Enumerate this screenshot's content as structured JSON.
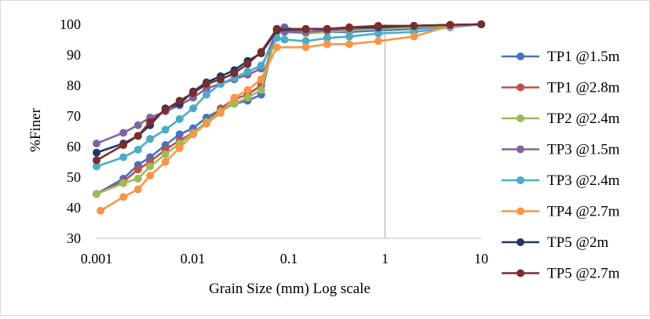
{
  "chart_data": {
    "type": "line",
    "x_scale": "log",
    "xlabel": "Grain Size (mm) Log scale",
    "ylabel": "%Finer",
    "xlim": [
      0.001,
      10
    ],
    "ylim": [
      30,
      100
    ],
    "x_ticks": [
      "0.001",
      "0.01",
      "0.1",
      "1",
      "10"
    ],
    "y_ticks": [
      "30",
      "40",
      "50",
      "60",
      "70",
      "80",
      "90",
      "100"
    ],
    "gridlines": "vertical line at x=1 only",
    "legend_position": "right",
    "series": [
      {
        "name": "TP1 @1.5m",
        "color": "#4472C4",
        "x": [
          0.001,
          0.0019,
          0.0027,
          0.0036,
          0.0052,
          0.0073,
          0.0101,
          0.0139,
          0.0195,
          0.0271,
          0.0372,
          0.0515,
          0.075,
          0.09,
          0.15,
          0.25,
          0.425,
          0.85,
          2.0,
          4.75,
          10
        ],
        "y": [
          44.5,
          49.5,
          54,
          56.5,
          60.5,
          64,
          66,
          69.5,
          72,
          74,
          75,
          77,
          98.5,
          99,
          97.5,
          97.5,
          97.5,
          98,
          98.5,
          99.5,
          100
        ]
      },
      {
        "name": "TP1 @2.8m",
        "color": "#C0504D",
        "x": [
          0.001,
          0.0019,
          0.0027,
          0.0036,
          0.0052,
          0.0073,
          0.0101,
          0.0139,
          0.0195,
          0.0271,
          0.0372,
          0.0515,
          0.075,
          0.09,
          0.15,
          0.25,
          0.425,
          0.85,
          2.0,
          4.75,
          10
        ],
        "y": [
          44.5,
          48.5,
          52.5,
          55,
          59,
          62,
          64.5,
          68,
          72.5,
          75.5,
          77,
          80,
          98.5,
          98,
          97.5,
          98,
          98.5,
          99,
          99.5,
          99.8,
          100
        ]
      },
      {
        "name": "TP2 @2.4m",
        "color": "#9BBB59",
        "x": [
          0.001,
          0.0019,
          0.0027,
          0.0036,
          0.0052,
          0.0073,
          0.0101,
          0.0139,
          0.0195,
          0.0271,
          0.0372,
          0.0515,
          0.075,
          0.09,
          0.15,
          0.25,
          0.425,
          0.85,
          2.0,
          4.75,
          10
        ],
        "y": [
          44.5,
          48,
          49.5,
          53.5,
          57.5,
          61,
          64.5,
          68,
          71.5,
          74,
          76,
          78.5,
          97.5,
          97.5,
          97,
          97.5,
          98,
          98.5,
          99,
          99.5,
          100
        ]
      },
      {
        "name": "TP3 @1.5m",
        "color": "#8064A2",
        "x": [
          0.001,
          0.0019,
          0.0027,
          0.0036,
          0.0052,
          0.0073,
          0.0101,
          0.0139,
          0.0195,
          0.0271,
          0.0372,
          0.0515,
          0.075,
          0.09,
          0.15,
          0.25,
          0.425,
          0.85,
          2.0,
          4.75,
          10
        ],
        "y": [
          61,
          64.5,
          67,
          69.5,
          71.5,
          73.5,
          76,
          79,
          80.5,
          82,
          83.5,
          85.5,
          98,
          97.5,
          97.5,
          98,
          98.5,
          99,
          99.5,
          99.8,
          100
        ]
      },
      {
        "name": "TP3 @2.4m",
        "color": "#4BACC6",
        "x": [
          0.001,
          0.0019,
          0.0027,
          0.0036,
          0.0052,
          0.0073,
          0.0101,
          0.0139,
          0.0195,
          0.0271,
          0.0372,
          0.0515,
          0.075,
          0.09,
          0.15,
          0.25,
          0.425,
          0.85,
          2.0,
          4.75,
          10
        ],
        "y": [
          53.5,
          56.5,
          59,
          62.5,
          65.5,
          69,
          72.5,
          77,
          80.5,
          82.5,
          84.5,
          86.5,
          95.5,
          95,
          94.5,
          95.5,
          96,
          97,
          97.5,
          99,
          100
        ]
      },
      {
        "name": "TP4 @2.7m",
        "color": "#F79646",
        "x": [
          0.0011,
          0.0019,
          0.0027,
          0.0036,
          0.0052,
          0.0073,
          0.0101,
          0.0139,
          0.0195,
          0.0271,
          0.0372,
          0.0515,
          0.075,
          0.15,
          0.25,
          0.425,
          0.85,
          2.0,
          4.75,
          10
        ],
        "y": [
          39,
          43.5,
          46,
          50.5,
          55,
          59.5,
          64,
          67.5,
          71,
          76,
          78.5,
          82,
          92.5,
          92.5,
          93.5,
          93.5,
          94.5,
          96,
          99.5,
          100
        ]
      },
      {
        "name": "TP5 @2m",
        "color": "#1F3864",
        "x": [
          0.001,
          0.0019,
          0.0027,
          0.0036,
          0.0052,
          0.0073,
          0.0101,
          0.0139,
          0.0195,
          0.0271,
          0.0372,
          0.0515,
          0.075,
          0.15,
          0.25,
          0.425,
          0.85,
          2.0,
          4.75,
          10
        ],
        "y": [
          58,
          61,
          63.5,
          67,
          72.5,
          74,
          78,
          81,
          83,
          85,
          88,
          90.5,
          98,
          98.5,
          98.5,
          99,
          99,
          99.5,
          99.8,
          100
        ]
      },
      {
        "name": "TP5 @2.7m",
        "color": "#7B2C2C",
        "x": [
          0.001,
          0.0019,
          0.0027,
          0.0036,
          0.0052,
          0.0073,
          0.0101,
          0.0139,
          0.0195,
          0.0271,
          0.0372,
          0.0515,
          0.075,
          0.15,
          0.25,
          0.425,
          0.85,
          2.0,
          4.75,
          10
        ],
        "y": [
          55.5,
          60.5,
          63.5,
          68,
          72,
          75,
          77.5,
          80.5,
          82,
          84,
          87,
          91,
          98.5,
          98.5,
          98.5,
          99,
          99.5,
          99.5,
          99.8,
          100
        ]
      }
    ]
  }
}
